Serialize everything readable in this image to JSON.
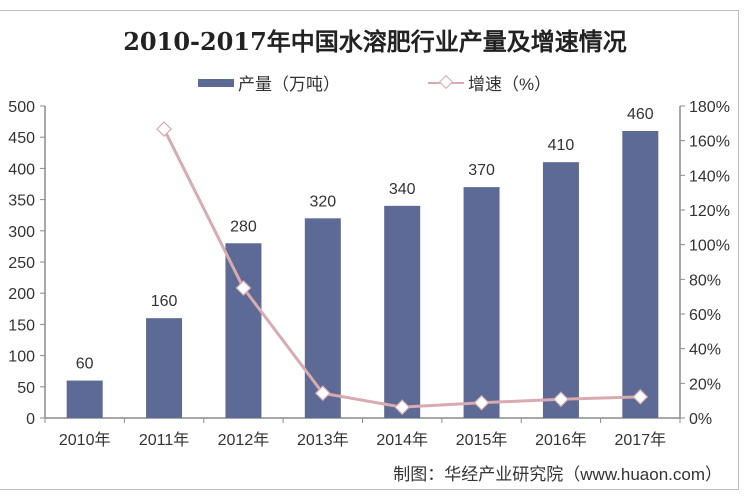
{
  "chart_data": {
    "type": "bar+line",
    "title": "2010-2017年中国水溶肥行业产量及增速情况",
    "categories": [
      "2010年",
      "2011年",
      "2012年",
      "2013年",
      "2014年",
      "2015年",
      "2016年",
      "2017年"
    ],
    "series": [
      {
        "name": "产量（万吨）",
        "type": "bar",
        "axis": "left",
        "color": "#5d6a95",
        "values": [
          60,
          160,
          280,
          320,
          340,
          370,
          410,
          460
        ]
      },
      {
        "name": "增速（%）",
        "type": "line",
        "axis": "right",
        "color": "#d9aab0",
        "marker": "diamond",
        "values": [
          null,
          166.7,
          75,
          14.3,
          6.25,
          8.8,
          10.8,
          12.2
        ]
      }
    ],
    "left_axis": {
      "min": 0,
      "max": 500,
      "step": 50,
      "ticks": [
        "0",
        "50",
        "100",
        "150",
        "200",
        "250",
        "300",
        "350",
        "400",
        "450",
        "500"
      ]
    },
    "right_axis": {
      "min": 0,
      "max": 180,
      "step": 20,
      "ticks": [
        "0%",
        "20%",
        "40%",
        "60%",
        "80%",
        "100%",
        "120%",
        "140%",
        "160%",
        "180%"
      ]
    },
    "data_labels": [
      "60",
      "160",
      "280",
      "320",
      "340",
      "370",
      "410",
      "460"
    ],
    "legend_position": "top",
    "grid": false,
    "source": "制图：华经产业研究院（www.huaon.com）"
  },
  "legend": {
    "bar_label": "产量（万吨）",
    "line_label": "增速（%）"
  }
}
